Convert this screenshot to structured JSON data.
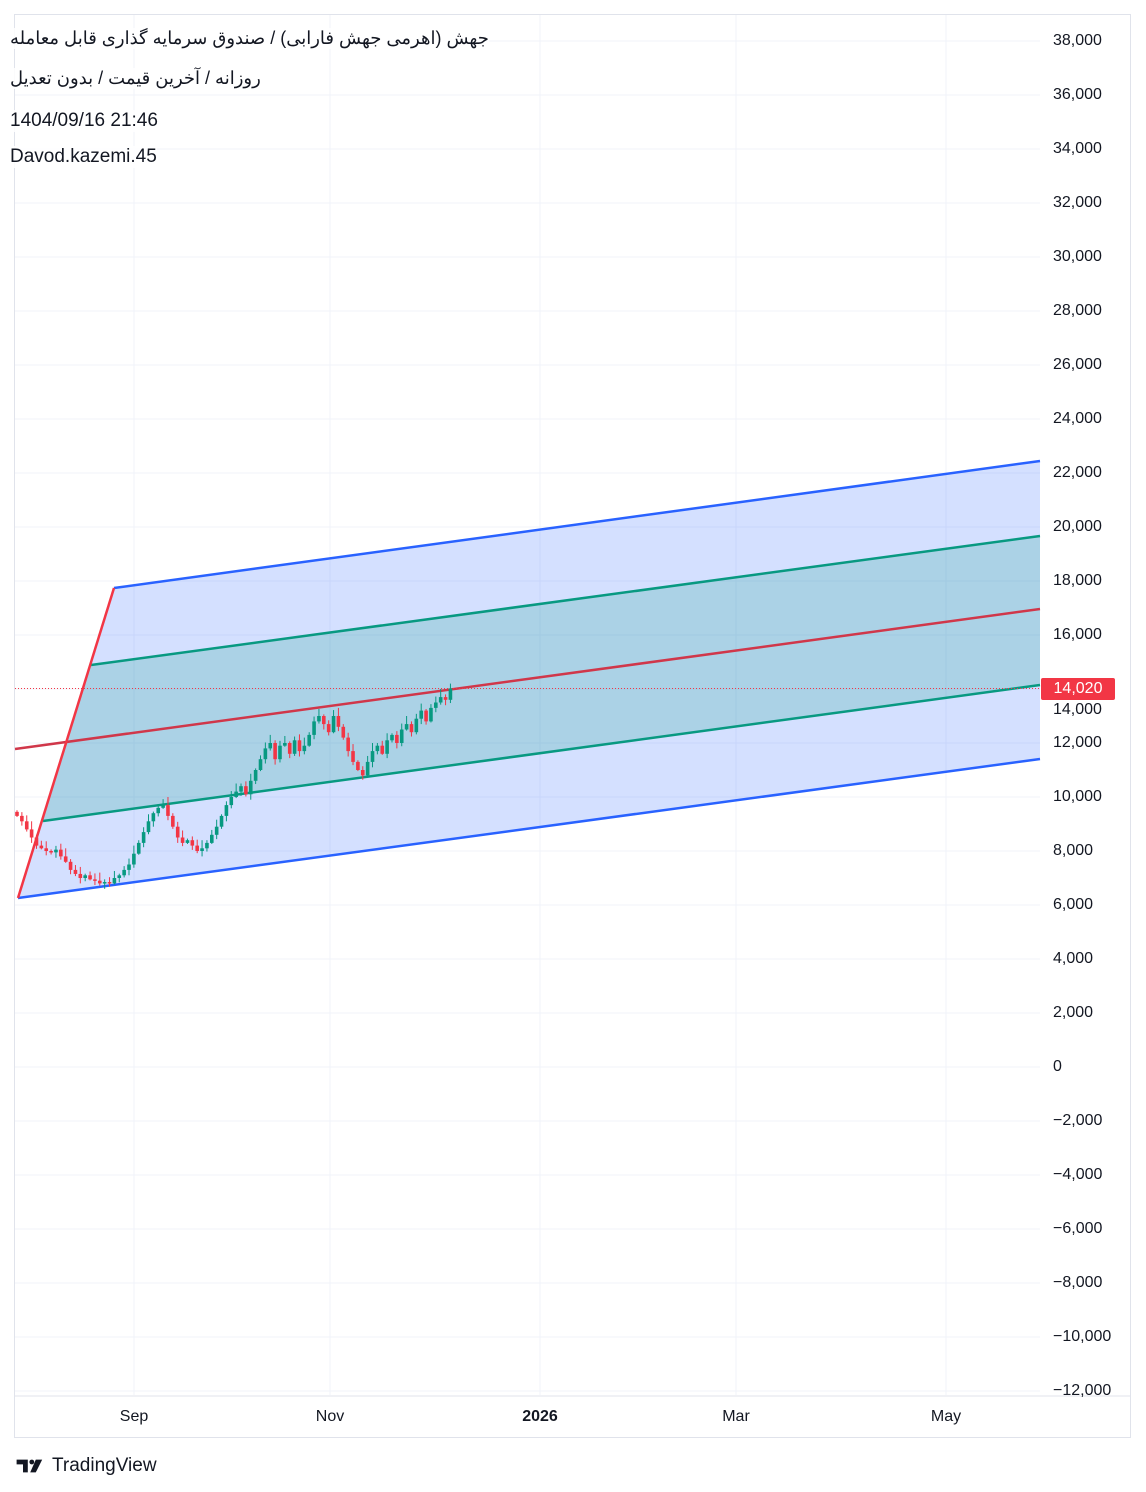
{
  "header": {
    "title": "جهش (اهرمی جهش فارابی) / صندوق سرمایه گذاری قابل معامله",
    "subtitle": "روزانه / آخرین قیمت / بدون تعدیل",
    "datetime": "1404/09/16 21:46",
    "author": "Davod.kazemi.45"
  },
  "branding": {
    "name": "TradingView"
  },
  "colors": {
    "up": "#089981",
    "down": "#f23645",
    "channel_outer": "#2962ff",
    "channel_inner": "#089981",
    "median": "#d0374a",
    "handle": "#f23645"
  },
  "chart_data": {
    "type": "candlestick",
    "title": "جهش",
    "y_axis": {
      "min": -12000,
      "max": 38000,
      "step": 2000,
      "tick_labels": [
        "38,000",
        "36,000",
        "34,000",
        "32,000",
        "30,000",
        "28,000",
        "26,000",
        "24,000",
        "22,000",
        "20,000",
        "18,000",
        "16,000",
        "14,000",
        "12,000",
        "10,000",
        "8,000",
        "6,000",
        "4,000",
        "2,000",
        "0",
        "−2,000",
        "−4,000",
        "−6,000",
        "−8,000",
        "−10,000",
        "−12,000"
      ]
    },
    "x_axis": {
      "tick_labels": [
        {
          "label": "Sep",
          "bold": false
        },
        {
          "label": "Nov",
          "bold": false
        },
        {
          "label": "2026",
          "bold": true
        },
        {
          "label": "Mar",
          "bold": false
        },
        {
          "label": "May",
          "bold": false
        }
      ]
    },
    "last_price": 14020,
    "last_price_label": "14,020",
    "closes": [
      9300,
      9100,
      8800,
      8500,
      8200,
      8100,
      8000,
      7950,
      8050,
      7800,
      7600,
      7300,
      7150,
      7000,
      7100,
      6950,
      6900,
      6800,
      6850,
      6800,
      7000,
      7100,
      7300,
      7500,
      7900,
      8300,
      8700,
      9100,
      9400,
      9600,
      9700,
      9300,
      8900,
      8500,
      8300,
      8400,
      8200,
      8000,
      8100,
      8300,
      8600,
      8900,
      9300,
      9700,
      10000,
      10200,
      10400,
      10100,
      10600,
      11000,
      11400,
      11800,
      12000,
      11400,
      11900,
      12000,
      11600,
      12100,
      11700,
      11900,
      12300,
      12800,
      13000,
      12700,
      12400,
      13000,
      12600,
      12200,
      11700,
      11300,
      11000,
      10800,
      11300,
      11700,
      11900,
      11600,
      12100,
      12300,
      12000,
      12500,
      12700,
      12400,
      12900,
      13200,
      12800,
      13300,
      13500,
      13700,
      13600,
      14020
    ],
    "pitchfork": {
      "anchor_prices": [
        6300,
        17800,
        9100
      ],
      "lines_at_right_edge": {
        "outer_top": 22500,
        "inner_top": 19700,
        "median": 16900,
        "inner_bottom": 14200,
        "outer_bottom": 11400
      }
    }
  }
}
